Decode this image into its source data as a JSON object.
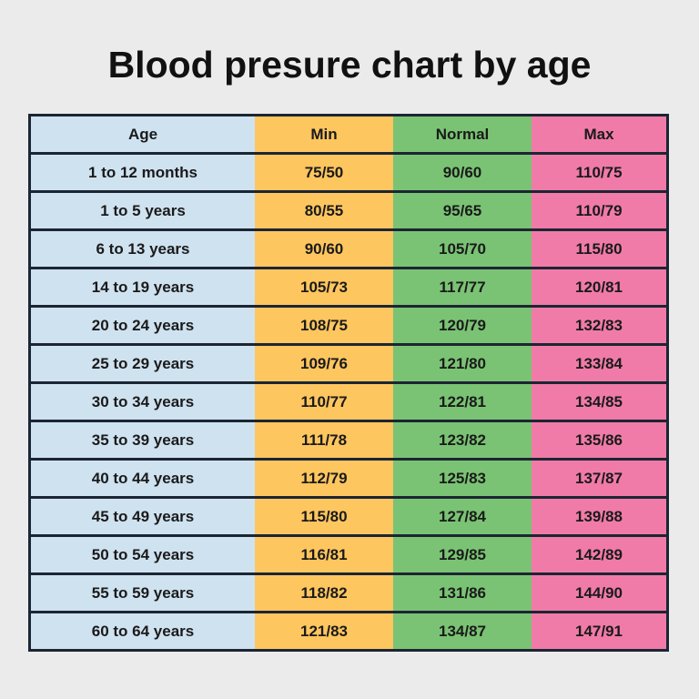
{
  "chart_data": {
    "type": "table",
    "title": "Blood presure chart by age",
    "columns": [
      "Age",
      "Min",
      "Normal",
      "Max"
    ],
    "rows": [
      [
        "1 to 12 months",
        "75/50",
        "90/60",
        "110/75"
      ],
      [
        "1 to 5 years",
        "80/55",
        "95/65",
        "110/79"
      ],
      [
        "6 to 13 years",
        "90/60",
        "105/70",
        "115/80"
      ],
      [
        "14 to 19 years",
        "105/73",
        "117/77",
        "120/81"
      ],
      [
        "20 to 24 years",
        "108/75",
        "120/79",
        "132/83"
      ],
      [
        "25 to 29 years",
        "109/76",
        "121/80",
        "133/84"
      ],
      [
        "30 to 34 years",
        "110/77",
        "122/81",
        "134/85"
      ],
      [
        "35 to 39 years",
        "111/78",
        "123/82",
        "135/86"
      ],
      [
        "40 to 44 years",
        "112/79",
        "125/83",
        "137/87"
      ],
      [
        "45 to 49 years",
        "115/80",
        "127/84",
        "139/88"
      ],
      [
        "50 to 54 years",
        "116/81",
        "129/85",
        "142/89"
      ],
      [
        "55 to 59 years",
        "118/82",
        "131/86",
        "144/90"
      ],
      [
        "60 to 64 years",
        "121/83",
        "134/87",
        "147/91"
      ]
    ],
    "column_colors": [
      "#cfe2f0",
      "#fec65f",
      "#7ac374",
      "#f07ba8"
    ]
  }
}
